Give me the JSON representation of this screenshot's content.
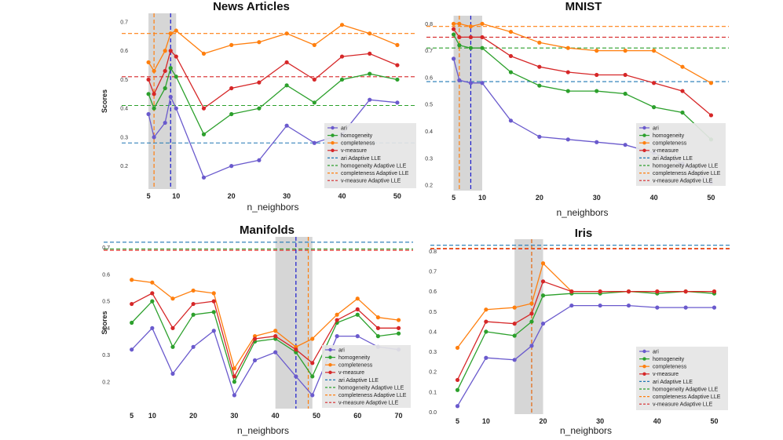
{
  "chart_data": [
    {
      "type": "line",
      "title": "News Articles",
      "xlabel": "n_neighbors",
      "ylabel": "Scores",
      "xticks": [
        5,
        10,
        20,
        30,
        40,
        50
      ],
      "yticks": [
        0.2,
        0.3,
        0.4,
        0.5,
        0.6,
        0.7
      ],
      "xlim": [
        3,
        52
      ],
      "ylim": [
        0.12,
        0.73
      ],
      "shaded_region": [
        5,
        10
      ],
      "x": [
        5,
        6,
        8,
        9,
        10,
        15,
        20,
        25,
        30,
        35,
        40,
        45,
        50
      ],
      "series": [
        {
          "name": "ari",
          "color": "#6a5acd",
          "values": [
            0.38,
            0.3,
            0.35,
            0.44,
            0.4,
            0.16,
            0.2,
            0.22,
            0.34,
            0.28,
            0.31,
            0.43,
            0.42
          ]
        },
        {
          "name": "homogeneity",
          "color": "#2ca02c",
          "values": [
            0.45,
            0.4,
            0.47,
            0.54,
            0.51,
            0.31,
            0.38,
            0.4,
            0.48,
            0.42,
            0.5,
            0.52,
            0.5
          ]
        },
        {
          "name": "completeness",
          "color": "#ff7f0e",
          "values": [
            0.56,
            0.53,
            0.6,
            0.66,
            0.67,
            0.59,
            0.62,
            0.63,
            0.66,
            0.62,
            0.69,
            0.66,
            0.62
          ]
        },
        {
          "name": "v-measure",
          "color": "#d62728",
          "values": [
            0.5,
            0.45,
            0.53,
            0.6,
            0.58,
            0.4,
            0.47,
            0.49,
            0.56,
            0.5,
            0.58,
            0.59,
            0.55
          ]
        }
      ],
      "adaptive_hlines": [
        {
          "name": "ari Adaptive LLE",
          "color": "#1f77b4",
          "value": 0.28
        },
        {
          "name": "homogeneity Adaptive LLE",
          "color": "#2ca02c",
          "value": 0.41
        },
        {
          "name": "completeness Adaptive LLE",
          "color": "#ff7f0e",
          "value": 0.66
        },
        {
          "name": "v-measure Adaptive LLE",
          "color": "#d62728",
          "value": 0.51
        }
      ],
      "adaptive_vlines": [
        {
          "color": "#ff7f0e",
          "value": 6
        },
        {
          "color": "#1a1acc",
          "value": 9
        }
      ],
      "legend": [
        "ari",
        "homogeneity",
        "completeness",
        "v-measure",
        "ari Adaptive LLE",
        "homogeneity Adaptive LLE",
        "completeness Adaptive LLE",
        "v-measure Adaptive LLE"
      ],
      "legend_position": "lower-right"
    },
    {
      "type": "line",
      "title": "MNIST",
      "xlabel": "n_neighbors",
      "ylabel": "",
      "xticks": [
        5,
        10,
        20,
        30,
        40,
        50
      ],
      "yticks": [
        0.2,
        0.3,
        0.4,
        0.5,
        0.6,
        0.7,
        0.8
      ],
      "xlim": [
        3,
        52
      ],
      "ylim": [
        0.18,
        0.83
      ],
      "shaded_region": [
        5,
        10
      ],
      "x": [
        5,
        6,
        8,
        10,
        15,
        20,
        25,
        30,
        35,
        40,
        45,
        50
      ],
      "series": [
        {
          "name": "ari",
          "color": "#6a5acd",
          "values": [
            0.67,
            0.59,
            0.58,
            0.58,
            0.44,
            0.38,
            0.37,
            0.36,
            0.35,
            0.32,
            0.28,
            0.21
          ]
        },
        {
          "name": "homogeneity",
          "color": "#2ca02c",
          "values": [
            0.76,
            0.72,
            0.71,
            0.71,
            0.62,
            0.57,
            0.55,
            0.55,
            0.54,
            0.49,
            0.47,
            0.37
          ]
        },
        {
          "name": "completeness",
          "color": "#ff7f0e",
          "values": [
            0.8,
            0.8,
            0.79,
            0.8,
            0.77,
            0.73,
            0.71,
            0.7,
            0.7,
            0.7,
            0.64,
            0.58
          ]
        },
        {
          "name": "v-measure",
          "color": "#d62728",
          "values": [
            0.78,
            0.75,
            0.75,
            0.75,
            0.68,
            0.64,
            0.62,
            0.61,
            0.61,
            0.58,
            0.55,
            0.46
          ]
        }
      ],
      "adaptive_hlines": [
        {
          "name": "ari Adaptive LLE",
          "color": "#1f77b4",
          "value": 0.585
        },
        {
          "name": "homogeneity Adaptive LLE",
          "color": "#2ca02c",
          "value": 0.71
        },
        {
          "name": "completeness Adaptive LLE",
          "color": "#ff7f0e",
          "value": 0.79
        },
        {
          "name": "v-measure Adaptive LLE",
          "color": "#d62728",
          "value": 0.75
        }
      ],
      "adaptive_vlines": [
        {
          "color": "#ff7f0e",
          "value": 6
        },
        {
          "color": "#1a1acc",
          "value": 8
        }
      ],
      "legend": [
        "ari",
        "homogeneity",
        "completeness",
        "v-measure",
        "ari Adaptive LLE",
        "homogeneity Adaptive LLE",
        "completeness Adaptive LLE",
        "v-measure Adaptive LLE"
      ],
      "legend_position": "lower-right"
    },
    {
      "type": "line",
      "title": "Manifolds",
      "xlabel": "n_neighbors",
      "ylabel": "Scores",
      "xticks": [
        5,
        10,
        20,
        30,
        40,
        50,
        60,
        70
      ],
      "yticks": [
        0.2,
        0.3,
        0.4,
        0.5,
        0.6,
        0.7
      ],
      "xlim": [
        2,
        72
      ],
      "ylim": [
        0.1,
        0.74
      ],
      "shaded_region": [
        40,
        49
      ],
      "x": [
        5,
        10,
        15,
        20,
        25,
        30,
        35,
        40,
        45,
        49,
        55,
        60,
        65,
        70
      ],
      "series": [
        {
          "name": "ari",
          "color": "#6a5acd",
          "values": [
            0.32,
            0.4,
            0.23,
            0.33,
            0.39,
            0.15,
            0.28,
            0.31,
            0.22,
            0.15,
            0.37,
            0.37,
            0.33,
            0.32
          ]
        },
        {
          "name": "homogeneity",
          "color": "#2ca02c",
          "values": [
            0.42,
            0.5,
            0.33,
            0.45,
            0.46,
            0.2,
            0.35,
            0.36,
            0.31,
            0.22,
            0.42,
            0.45,
            0.37,
            0.38
          ]
        },
        {
          "name": "completeness",
          "color": "#ff7f0e",
          "values": [
            0.58,
            0.57,
            0.51,
            0.54,
            0.53,
            0.25,
            0.37,
            0.39,
            0.33,
            0.36,
            0.45,
            0.51,
            0.44,
            0.43
          ]
        },
        {
          "name": "v-measure",
          "color": "#d62728",
          "values": [
            0.49,
            0.53,
            0.4,
            0.49,
            0.5,
            0.22,
            0.36,
            0.37,
            0.32,
            0.27,
            0.43,
            0.47,
            0.4,
            0.4
          ]
        }
      ],
      "adaptive_hlines": [
        {
          "name": "ari Adaptive LLE",
          "color": "#1f77b4",
          "value": 0.72
        },
        {
          "name": "homogeneity Adaptive LLE",
          "color": "#2ca02c",
          "value": 0.695
        },
        {
          "name": "completeness Adaptive LLE",
          "color": "#ff7f0e",
          "value": 0.69
        },
        {
          "name": "v-measure Adaptive LLE",
          "color": "#d62728",
          "value": 0.69
        }
      ],
      "adaptive_vlines": [
        {
          "color": "#1a1acc",
          "value": 45
        },
        {
          "color": "#ff7f0e",
          "value": 48
        }
      ],
      "legend": [
        "ari",
        "homogeneity",
        "completeness",
        "v-measure",
        "ari Adaptive LLE",
        "homogeneity Adaptive LLE",
        "completeness Adaptive LLE",
        "v-measure Adaptive LLE"
      ],
      "legend_position": "lower-right"
    },
    {
      "type": "line",
      "title": "Iris",
      "xlabel": "n_neighbors",
      "ylabel": "",
      "xticks": [
        5,
        10,
        20,
        30,
        40,
        50
      ],
      "yticks": [
        0.0,
        0.1,
        0.2,
        0.3,
        0.4,
        0.5,
        0.6,
        0.7,
        0.8
      ],
      "xlim": [
        3,
        52
      ],
      "ylim": [
        -0.01,
        0.86
      ],
      "shaded_region": [
        15,
        20
      ],
      "x": [
        5,
        10,
        15,
        18,
        20,
        25,
        30,
        35,
        40,
        45,
        50
      ],
      "series": [
        {
          "name": "ari",
          "color": "#6a5acd",
          "values": [
            0.03,
            0.27,
            0.26,
            0.33,
            0.44,
            0.53,
            0.53,
            0.53,
            0.52,
            0.52,
            0.52
          ]
        },
        {
          "name": "homogeneity",
          "color": "#2ca02c",
          "values": [
            0.11,
            0.4,
            0.38,
            0.45,
            0.58,
            0.59,
            0.59,
            0.6,
            0.59,
            0.6,
            0.59
          ]
        },
        {
          "name": "completeness",
          "color": "#ff7f0e",
          "values": [
            0.32,
            0.51,
            0.52,
            0.54,
            0.74,
            0.6,
            0.6,
            0.6,
            0.6,
            0.6,
            0.6
          ]
        },
        {
          "name": "v-measure",
          "color": "#d62728",
          "values": [
            0.16,
            0.45,
            0.44,
            0.49,
            0.65,
            0.6,
            0.6,
            0.6,
            0.6,
            0.6,
            0.6
          ]
        }
      ],
      "adaptive_hlines": [
        {
          "name": "ari Adaptive LLE",
          "color": "#1f77b4",
          "value": 0.83
        },
        {
          "name": "homogeneity Adaptive LLE",
          "color": "#2ca02c",
          "value": 0.815
        },
        {
          "name": "completeness Adaptive LLE",
          "color": "#ff7f0e",
          "value": 0.815
        },
        {
          "name": "v-measure Adaptive LLE",
          "color": "#d62728",
          "value": 0.812
        }
      ],
      "adaptive_vlines": [
        {
          "color": "#1a1acc",
          "value": 18
        },
        {
          "color": "#ff7f0e",
          "value": 18
        }
      ],
      "legend": [
        "ari",
        "homogeneity",
        "completeness",
        "v-measure",
        "ari Adaptive LLE",
        "homogeneity Adaptive LLE",
        "completeness Adaptive LLE",
        "v-measure Adaptive LLE"
      ],
      "legend_position": "lower-right"
    }
  ]
}
